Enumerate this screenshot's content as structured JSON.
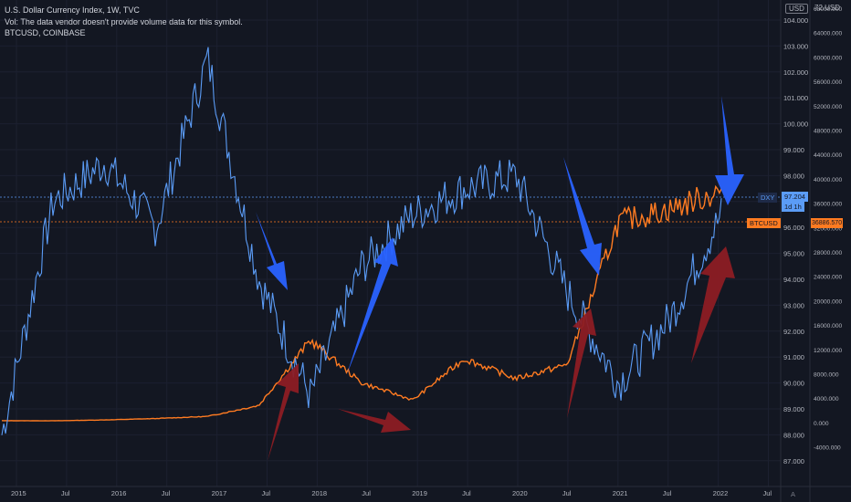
{
  "legend": {
    "line1": "U.S. Dollar Currency Index, 1W, TVC",
    "line2": "Vol: The data vendor doesn't provide volume data for this symbol.",
    "line3": "BTCUSD, COINBASE"
  },
  "header": {
    "currency_badge": "USD",
    "scale2_title": "72 USD"
  },
  "axis_left_labels": [
    "104.000",
    "103.000",
    "102.000",
    "101.000",
    "100.000",
    "99.000",
    "98.000",
    "97.000",
    "96.000",
    "95.000",
    "94.000",
    "93.000",
    "92.000",
    "91.000",
    "90.000",
    "89.000",
    "88.000",
    "87.000"
  ],
  "axis_right_labels": [
    "68000.000",
    "64000.000",
    "60000.000",
    "56000.000",
    "52000.000",
    "48000.000",
    "44000.000",
    "40000.000",
    "36000.000",
    "32000.000",
    "28000.000",
    "24000.000",
    "20000.000",
    "16000.000",
    "12000.000",
    "8000.000",
    "4000.000",
    "0.000",
    "-4000.000"
  ],
  "time_labels": [
    "2015",
    "Jul",
    "2016",
    "Jul",
    "2017",
    "Jul",
    "2018",
    "Jul",
    "2019",
    "Jul",
    "2020",
    "Jul",
    "2021",
    "Jul",
    "2022",
    "Jul"
  ],
  "tags": {
    "dxy_name": "DXY",
    "dxy_value": "97.204",
    "dxy_countdown": "1d 1h",
    "btc_name": "BTCUSD",
    "btc_value": "36886.570"
  },
  "corner": {
    "auto": "A"
  },
  "colors": {
    "dxy": "#5b9cf6",
    "btc": "#ff7b21",
    "blue_arrow": "#2962ff",
    "red_arrow": "#8c1c24",
    "background": "#131722"
  },
  "chart_data": {
    "type": "line",
    "y_left_range": [
      86.5,
      104.5
    ],
    "y_right_range": [
      -4000,
      72000
    ],
    "series": [
      {
        "name": "DXY",
        "axis": "left",
        "x": [
          "2015",
          "2015-07",
          "2016",
          "2016-07",
          "2017",
          "2017-07",
          "2018",
          "2018-07",
          "2019",
          "2019-07",
          "2020",
          "2020-07",
          "2021",
          "2021-07",
          "2022"
        ],
        "y": [
          88.0,
          97.0,
          98.5,
          96.0,
          102.5,
          94.0,
          89.5,
          94.5,
          96.5,
          97.5,
          98.0,
          93.5,
          90.0,
          92.5,
          96.5
        ]
      },
      {
        "name": "BTCUSD",
        "axis": "right",
        "x": [
          "2015",
          "2015-07",
          "2016",
          "2016-07",
          "2017",
          "2017-07",
          "2018",
          "2018-07",
          "2019",
          "2019-07",
          "2020",
          "2020-07",
          "2021",
          "2021-07",
          "2022"
        ],
        "y": [
          300,
          280,
          420,
          650,
          1000,
          2800,
          13500,
          6500,
          3700,
          10500,
          7200,
          9500,
          33000,
          35000,
          38000
        ]
      }
    ]
  }
}
